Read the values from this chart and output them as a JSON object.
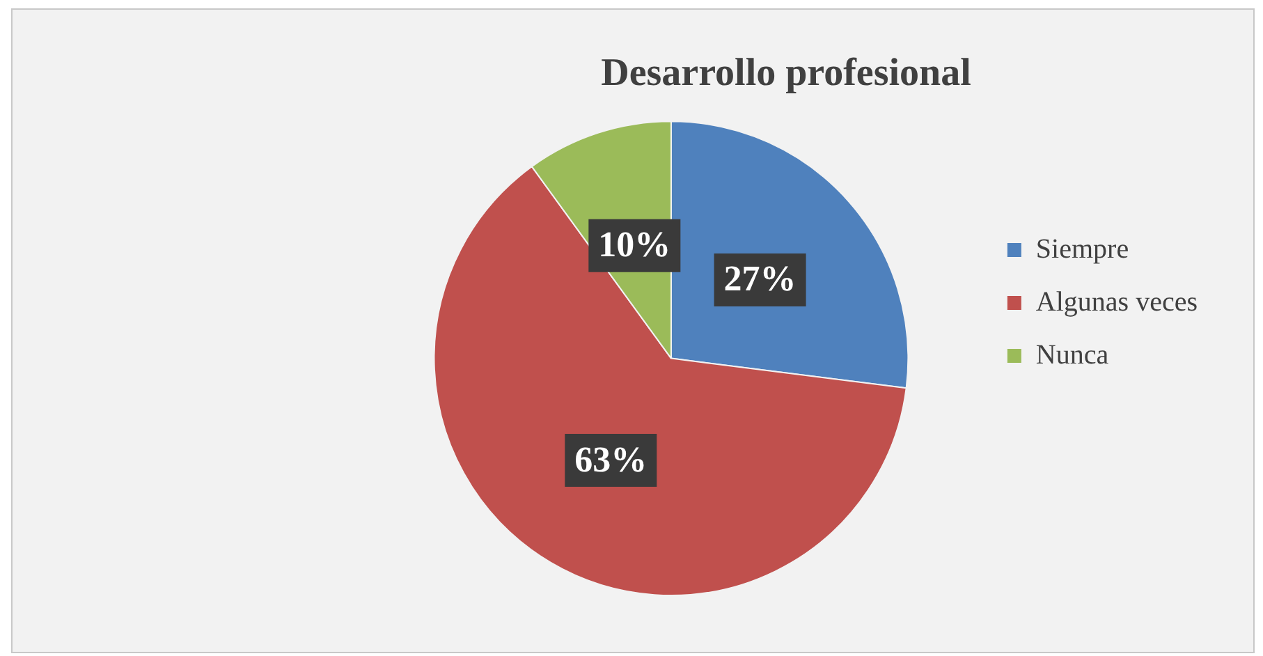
{
  "chart_data": {
    "type": "pie",
    "title": "Desarrollo profesional",
    "categories": [
      "Siempre",
      "Algunas veces",
      "Nunca"
    ],
    "values": [
      27,
      63,
      10
    ],
    "colors": [
      "#4f81bd",
      "#c0504d",
      "#9bbb59"
    ],
    "value_labels": [
      "27%",
      "63%",
      "10%"
    ],
    "legend": "right"
  }
}
